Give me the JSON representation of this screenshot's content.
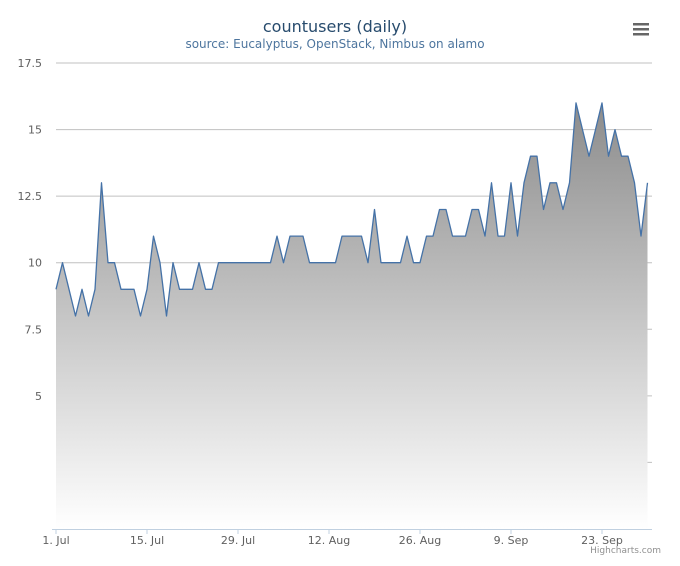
{
  "chart_data": {
    "type": "area",
    "title": "countusers (daily)",
    "subtitle": "source: Eucalyptus, OpenStack, Nimbus on alamo",
    "xlabel": "",
    "ylabel": "",
    "x_start": "2013-07-01",
    "x_tick_labels": [
      "1. Jul",
      "15. Jul",
      "29. Jul",
      "12. Aug",
      "26. Aug",
      "9. Sep",
      "23. Sep"
    ],
    "y_tick_labels": [
      "5",
      "7.5",
      "10",
      "12.5",
      "15",
      "17.5"
    ],
    "ylim": [
      0,
      17.5
    ],
    "grid": true,
    "legend": "none",
    "series": [
      {
        "values": [
          9,
          10,
          9,
          8,
          9,
          8,
          9,
          13,
          10,
          10,
          9,
          9,
          9,
          8,
          9,
          11,
          10,
          8,
          10,
          9,
          9,
          9,
          10,
          9,
          9,
          10,
          10,
          10,
          10,
          10,
          10,
          10,
          10,
          10,
          11,
          10,
          11,
          11,
          11,
          10,
          10,
          10,
          10,
          10,
          11,
          11,
          11,
          11,
          10,
          12,
          10,
          10,
          10,
          10,
          11,
          10,
          10,
          11,
          11,
          12,
          12,
          11,
          11,
          11,
          12,
          12,
          11,
          13,
          11,
          11,
          13,
          11,
          13,
          14,
          14,
          12,
          13,
          13,
          12,
          13,
          16,
          15,
          14,
          15,
          16,
          14,
          15,
          14,
          14,
          13,
          11,
          13
        ]
      }
    ],
    "colors": {
      "line": "#4572a7",
      "fill_top": "#8c8c8c",
      "fill_bottom": "#ffffff",
      "grid": "#c0c0c0"
    }
  },
  "credits": "Highcharts.com",
  "menu_icon": "hamburger-menu-icon"
}
